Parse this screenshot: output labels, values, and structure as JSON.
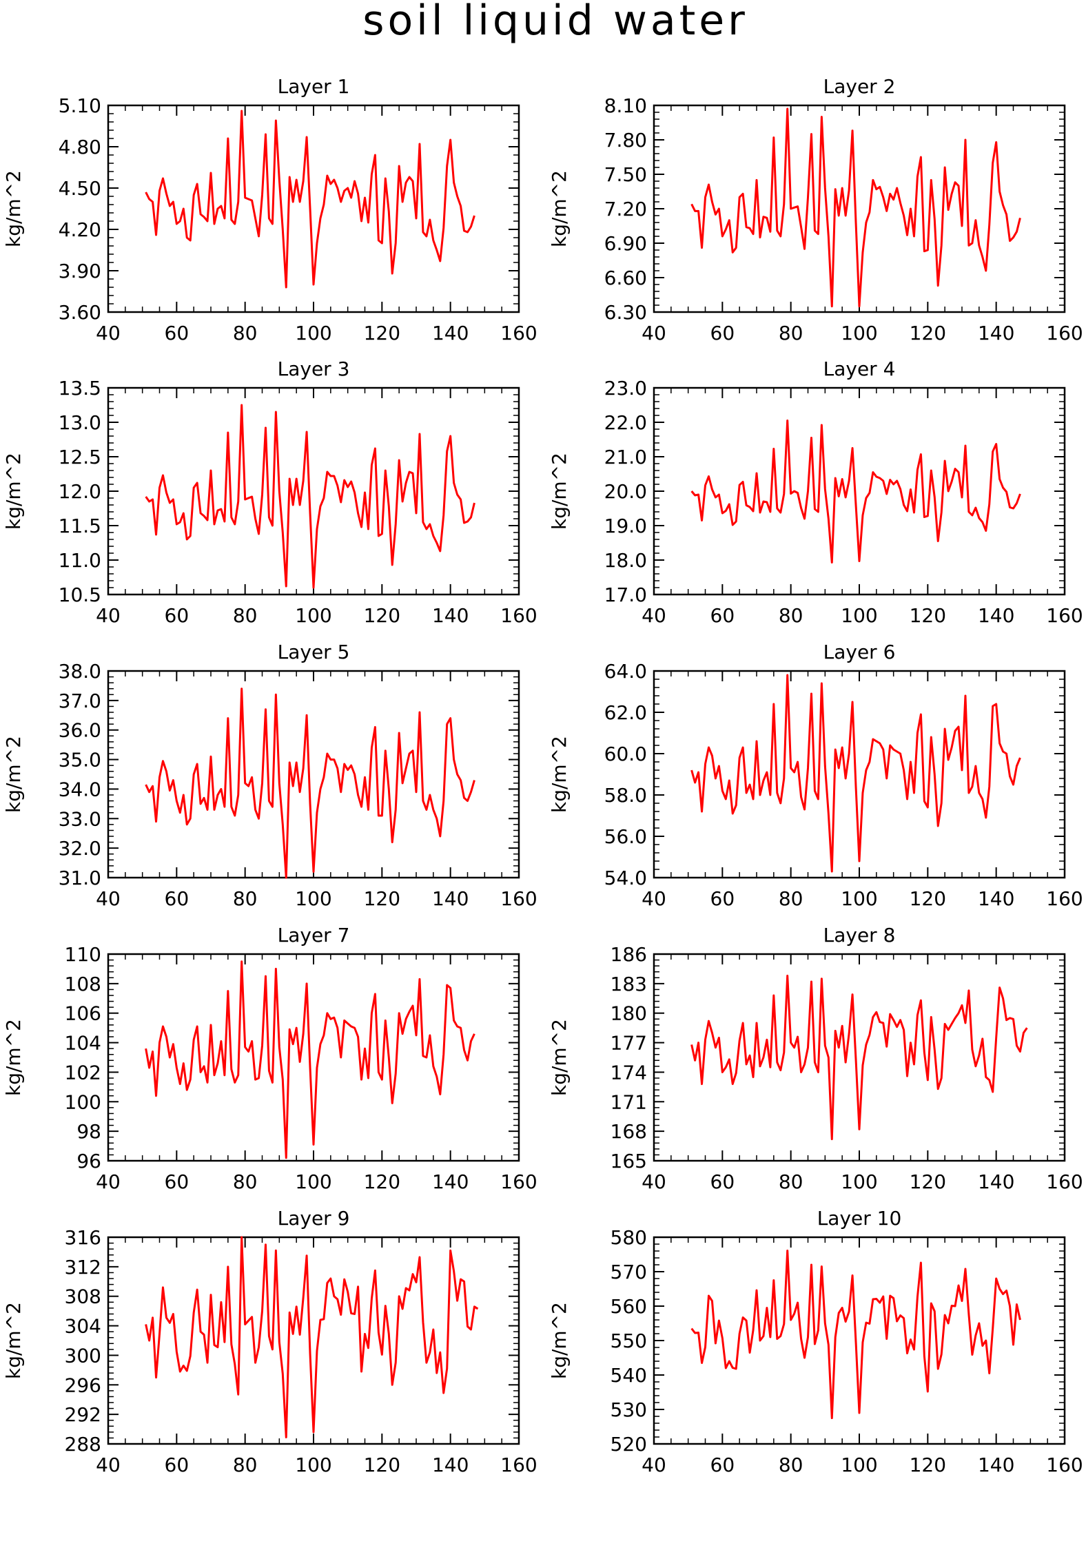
{
  "title": "soil liquid water",
  "style": {
    "line_color": "#ff0000",
    "axis_color": "#000000"
  },
  "chart_data": [
    {
      "type": "line",
      "title": "Layer 1",
      "ylabel": "kg/m^2",
      "xlim": [
        40,
        160
      ],
      "xticks": [
        40,
        60,
        80,
        100,
        120,
        140,
        160
      ],
      "ylim": [
        3.6,
        5.1
      ],
      "yticks": [
        "3.60",
        "3.90",
        "4.20",
        "4.50",
        "4.80",
        "5.10"
      ],
      "x_start": 51,
      "values": [
        4.47,
        4.42,
        4.4,
        4.16,
        4.48,
        4.57,
        4.46,
        4.37,
        4.4,
        4.24,
        4.26,
        4.35,
        4.14,
        4.12,
        4.45,
        4.53,
        4.31,
        4.29,
        4.26,
        4.61,
        4.24,
        4.35,
        4.37,
        4.28,
        4.86,
        4.27,
        4.24,
        4.4,
        5.06,
        4.43,
        4.42,
        4.41,
        4.28,
        4.15,
        4.45,
        4.89,
        4.28,
        4.24,
        4.99,
        4.56,
        4.2,
        3.78,
        4.58,
        4.4,
        4.56,
        4.4,
        4.55,
        4.87,
        4.35,
        3.8,
        4.1,
        4.28,
        4.38,
        4.59,
        4.53,
        4.56,
        4.5,
        4.4,
        4.48,
        4.5,
        4.43,
        4.55,
        4.46,
        4.26,
        4.43,
        4.25,
        4.6,
        4.74,
        4.12,
        4.1,
        4.57,
        4.33,
        3.88,
        4.1,
        4.66,
        4.4,
        4.54,
        4.58,
        4.55,
        4.28,
        4.82,
        4.18,
        4.15,
        4.27,
        4.12,
        4.05,
        3.97,
        4.21,
        4.66,
        4.85,
        4.54,
        4.44,
        4.37,
        4.19,
        4.18,
        4.22,
        4.3
      ]
    },
    {
      "type": "line",
      "title": "Layer 2",
      "ylabel": "kg/m^2",
      "xlim": [
        40,
        160
      ],
      "xticks": [
        40,
        60,
        80,
        100,
        120,
        140,
        160
      ],
      "ylim": [
        6.3,
        8.1
      ],
      "yticks": [
        "6.30",
        "6.60",
        "6.90",
        "7.20",
        "7.50",
        "7.80",
        "8.10"
      ],
      "x_start": 51,
      "values": [
        7.24,
        7.18,
        7.18,
        6.86,
        7.3,
        7.41,
        7.26,
        7.15,
        7.2,
        6.96,
        7.02,
        7.1,
        6.82,
        6.86,
        7.3,
        7.33,
        7.04,
        7.03,
        6.98,
        7.45,
        6.95,
        7.13,
        7.12,
        7.0,
        7.82,
        7.01,
        6.96,
        7.24,
        8.07,
        7.2,
        7.21,
        7.22,
        7.04,
        6.85,
        7.3,
        7.85,
        7.01,
        6.98,
        8.0,
        7.38,
        6.96,
        6.35,
        7.37,
        7.14,
        7.38,
        7.14,
        7.36,
        7.88,
        7.08,
        6.35,
        6.82,
        7.08,
        7.17,
        7.45,
        7.37,
        7.39,
        7.3,
        7.18,
        7.33,
        7.28,
        7.38,
        7.25,
        7.14,
        6.97,
        7.2,
        6.96,
        7.48,
        7.65,
        6.83,
        6.84,
        7.45,
        7.11,
        6.53,
        6.88,
        7.56,
        7.19,
        7.33,
        7.43,
        7.4,
        7.05,
        7.8,
        6.88,
        6.9,
        7.1,
        6.88,
        6.78,
        6.66,
        7.06,
        7.6,
        7.78,
        7.35,
        7.23,
        7.15,
        6.92,
        6.95,
        7.0,
        7.12
      ]
    },
    {
      "type": "line",
      "title": "Layer 3",
      "ylabel": "kg/m^2",
      "xlim": [
        40,
        160
      ],
      "xticks": [
        40,
        60,
        80,
        100,
        120,
        140,
        160
      ],
      "ylim": [
        10.5,
        13.5
      ],
      "yticks": [
        "10.5",
        "11.0",
        "11.5",
        "12.0",
        "12.5",
        "13.0",
        "13.5"
      ],
      "x_start": 51,
      "values": [
        11.92,
        11.85,
        11.88,
        11.37,
        12.05,
        12.23,
        11.98,
        11.83,
        11.88,
        11.52,
        11.55,
        11.68,
        11.3,
        11.35,
        12.05,
        12.12,
        11.68,
        11.64,
        11.58,
        12.3,
        11.52,
        11.72,
        11.74,
        11.56,
        12.85,
        11.62,
        11.52,
        11.85,
        13.25,
        11.88,
        11.9,
        11.92,
        11.6,
        11.38,
        11.95,
        12.92,
        11.62,
        11.5,
        13.15,
        12.0,
        11.4,
        10.62,
        12.18,
        11.8,
        12.18,
        11.8,
        12.15,
        12.86,
        11.68,
        10.6,
        11.45,
        11.78,
        11.9,
        12.28,
        12.22,
        12.22,
        12.08,
        11.84,
        12.16,
        12.06,
        12.14,
        11.98,
        11.68,
        11.48,
        11.98,
        11.45,
        12.38,
        12.62,
        11.35,
        11.38,
        12.3,
        11.78,
        10.93,
        11.52,
        12.45,
        11.85,
        12.12,
        12.28,
        12.26,
        11.68,
        12.83,
        11.55,
        11.45,
        11.52,
        11.35,
        11.25,
        11.13,
        11.65,
        12.58,
        12.8,
        12.12,
        11.95,
        11.88,
        11.54,
        11.56,
        11.62,
        11.83
      ]
    },
    {
      "type": "line",
      "title": "Layer 4",
      "ylabel": "kg/m^2",
      "xlim": [
        40,
        160
      ],
      "xticks": [
        40,
        60,
        80,
        100,
        120,
        140,
        160
      ],
      "ylim": [
        17.0,
        23.0
      ],
      "yticks": [
        "17.0",
        "18.0",
        "19.0",
        "20.0",
        "21.0",
        "22.0",
        "23.0"
      ],
      "x_start": 51,
      "values": [
        20.0,
        19.88,
        19.9,
        19.15,
        20.17,
        20.43,
        20.05,
        19.82,
        19.9,
        19.36,
        19.43,
        19.62,
        19.02,
        19.12,
        20.18,
        20.27,
        19.59,
        19.54,
        19.42,
        20.52,
        19.38,
        19.7,
        19.68,
        19.4,
        21.23,
        19.5,
        19.38,
        19.92,
        22.05,
        19.93,
        20.0,
        19.95,
        19.51,
        19.2,
        20.0,
        21.55,
        19.48,
        19.4,
        21.92,
        20.06,
        19.2,
        17.93,
        20.38,
        19.85,
        20.35,
        19.82,
        20.3,
        21.25,
        19.6,
        17.97,
        19.3,
        19.8,
        19.95,
        20.55,
        20.42,
        20.38,
        20.3,
        19.92,
        20.33,
        20.2,
        20.3,
        20.06,
        19.6,
        19.42,
        20.05,
        19.38,
        20.62,
        21.07,
        19.25,
        19.28,
        20.6,
        19.83,
        18.55,
        19.38,
        20.88,
        20.0,
        20.28,
        20.65,
        20.55,
        19.82,
        21.32,
        19.4,
        19.3,
        19.52,
        19.22,
        19.1,
        18.85,
        19.62,
        21.15,
        21.37,
        20.35,
        20.1,
        19.98,
        19.53,
        19.5,
        19.65,
        19.92
      ]
    },
    {
      "type": "line",
      "title": "Layer 5",
      "ylabel": "kg/m^2",
      "xlim": [
        40,
        160
      ],
      "xticks": [
        40,
        60,
        80,
        100,
        120,
        140,
        160
      ],
      "ylim": [
        31.0,
        38.0
      ],
      "yticks": [
        "31.0",
        "32.0",
        "33.0",
        "34.0",
        "35.0",
        "36.0",
        "37.0",
        "38.0"
      ],
      "x_start": 51,
      "values": [
        34.15,
        33.9,
        34.1,
        32.9,
        34.4,
        34.95,
        34.6,
        33.95,
        34.3,
        33.6,
        33.2,
        33.8,
        32.8,
        33.0,
        34.5,
        34.85,
        33.5,
        33.7,
        33.3,
        35.1,
        33.3,
        33.8,
        34.0,
        33.4,
        36.4,
        33.4,
        33.1,
        33.8,
        37.4,
        34.2,
        34.1,
        34.4,
        33.3,
        33.0,
        34.2,
        36.7,
        33.6,
        33.4,
        37.2,
        34.2,
        32.8,
        31.0,
        34.9,
        34.1,
        34.9,
        33.9,
        34.7,
        36.5,
        33.5,
        31.2,
        33.2,
        34.0,
        34.4,
        35.2,
        35.0,
        35.0,
        34.7,
        33.9,
        34.85,
        34.65,
        34.8,
        34.5,
        33.8,
        33.4,
        34.4,
        33.3,
        35.4,
        36.1,
        33.1,
        33.1,
        35.3,
        34.0,
        32.2,
        33.3,
        35.9,
        34.2,
        34.7,
        35.2,
        35.3,
        33.9,
        36.6,
        33.6,
        33.3,
        33.8,
        33.3,
        33.0,
        32.4,
        33.6,
        36.2,
        36.4,
        35.0,
        34.5,
        34.3,
        33.7,
        33.6,
        33.9,
        34.3
      ]
    },
    {
      "type": "line",
      "title": "Layer 6",
      "ylabel": "kg/m^2",
      "xlim": [
        40,
        160
      ],
      "xticks": [
        40,
        60,
        80,
        100,
        120,
        140,
        160
      ],
      "ylim": [
        54.0,
        64.0
      ],
      "yticks": [
        "54.0",
        "56.0",
        "58.0",
        "60.0",
        "62.0",
        "64.0"
      ],
      "x_start": 51,
      "values": [
        59.2,
        58.6,
        59.1,
        57.2,
        59.5,
        60.3,
        59.9,
        58.8,
        59.4,
        58.2,
        57.8,
        58.7,
        57.1,
        57.5,
        59.8,
        60.3,
        58.1,
        58.5,
        57.8,
        60.6,
        58.0,
        58.7,
        59.1,
        58.0,
        62.4,
        58.1,
        57.6,
        58.8,
        63.8,
        59.3,
        59.1,
        59.6,
        57.9,
        57.3,
        59.3,
        62.9,
        58.2,
        57.8,
        63.4,
        59.4,
        57.1,
        54.3,
        60.2,
        59.3,
        60.3,
        58.8,
        60.0,
        62.5,
        58.4,
        54.8,
        58.1,
        59.2,
        59.6,
        60.7,
        60.6,
        60.5,
        60.2,
        58.8,
        60.4,
        60.2,
        60.1,
        60.0,
        59.2,
        57.8,
        59.6,
        58.1,
        61.0,
        61.9,
        57.7,
        57.4,
        60.8,
        59.0,
        56.5,
        57.6,
        61.2,
        59.7,
        60.3,
        61.1,
        61.3,
        59.2,
        62.8,
        58.1,
        58.4,
        59.4,
        58.1,
        57.8,
        56.9,
        58.4,
        62.3,
        62.4,
        60.5,
        60.1,
        60.0,
        58.9,
        58.5,
        59.4,
        59.8
      ]
    },
    {
      "type": "line",
      "title": "Layer 7",
      "ylabel": "kg/m^2",
      "xlim": [
        40,
        160
      ],
      "xticks": [
        40,
        60,
        80,
        100,
        120,
        140,
        160
      ],
      "ylim": [
        96,
        110
      ],
      "yticks": [
        "96",
        "98",
        "100",
        "102",
        "104",
        "106",
        "108",
        "110"
      ],
      "x_start": 51,
      "values": [
        103.6,
        102.3,
        103.4,
        100.4,
        104.0,
        105.1,
        104.4,
        103.0,
        103.9,
        102.3,
        101.2,
        102.6,
        100.8,
        101.5,
        104.2,
        105.1,
        102.0,
        102.4,
        101.3,
        105.2,
        101.8,
        102.6,
        104.1,
        101.8,
        107.5,
        102.2,
        101.3,
        101.8,
        109.5,
        103.7,
        103.4,
        104.1,
        101.5,
        101.6,
        103.8,
        108.5,
        102.1,
        101.3,
        109.0,
        103.7,
        101.5,
        96.2,
        104.9,
        103.9,
        105.0,
        102.7,
        104.6,
        108.0,
        102.3,
        97.1,
        102.3,
        103.9,
        104.5,
        106.0,
        105.6,
        105.7,
        105.0,
        103.0,
        105.5,
        105.3,
        105.1,
        105.0,
        104.4,
        101.5,
        103.6,
        101.6,
        106.0,
        107.3,
        102.0,
        101.5,
        105.5,
        103.0,
        99.9,
        101.9,
        106.0,
        104.6,
        105.6,
        106.1,
        106.5,
        104.5,
        108.3,
        103.1,
        103.0,
        104.5,
        102.4,
        101.7,
        100.5,
        103.2,
        107.9,
        107.7,
        105.5,
        105.1,
        105.0,
        103.5,
        102.8,
        104.1,
        104.6
      ]
    },
    {
      "type": "line",
      "title": "Layer 8",
      "ylabel": "kg/m^2",
      "xlim": [
        40,
        160
      ],
      "xticks": [
        40,
        60,
        80,
        100,
        120,
        140,
        160
      ],
      "ylim": [
        165,
        186
      ],
      "yticks": [
        "165",
        "168",
        "171",
        "174",
        "177",
        "180",
        "183",
        "186"
      ],
      "x_start": 51,
      "values": [
        176.8,
        175.2,
        177.0,
        172.8,
        177.3,
        179.2,
        178.0,
        176.5,
        177.5,
        174.0,
        174.5,
        175.3,
        172.8,
        173.9,
        177.2,
        179.0,
        174.8,
        175.7,
        173.5,
        179.0,
        174.6,
        175.5,
        177.3,
        174.5,
        181.8,
        175.0,
        174.2,
        176.0,
        183.8,
        177.0,
        176.5,
        177.6,
        174.0,
        174.8,
        176.5,
        183.2,
        175.0,
        174.0,
        183.5,
        176.7,
        175.5,
        167.2,
        178.2,
        176.5,
        178.7,
        175.0,
        177.9,
        181.9,
        175.3,
        168.2,
        174.7,
        176.8,
        177.8,
        179.6,
        180.1,
        179.1,
        179.0,
        176.6,
        179.9,
        179.3,
        178.6,
        179.3,
        178.3,
        173.6,
        177.0,
        174.8,
        179.8,
        181.3,
        176.0,
        173.2,
        179.6,
        176.3,
        172.3,
        173.4,
        178.9,
        178.3,
        178.9,
        179.5,
        180.0,
        180.8,
        179.0,
        182.3,
        176.3,
        174.6,
        175.7,
        177.4,
        173.5,
        173.2,
        172.0,
        177.5,
        182.6,
        181.5,
        179.3,
        179.5,
        179.4,
        176.7,
        176.1,
        178.0,
        178.5
      ]
    },
    {
      "type": "line",
      "title": "Layer 9",
      "ylabel": "kg/m^2",
      "xlim": [
        40,
        160
      ],
      "xticks": [
        40,
        60,
        80,
        100,
        120,
        140,
        160
      ],
      "ylim": [
        288,
        316
      ],
      "yticks": [
        "288",
        "292",
        "296",
        "300",
        "304",
        "308",
        "312",
        "316"
      ],
      "x_start": 51,
      "values": [
        304.2,
        302.0,
        305.1,
        297.0,
        302.9,
        309.2,
        305.1,
        304.4,
        305.6,
        300.5,
        297.8,
        298.6,
        297.9,
        299.9,
        305.8,
        308.9,
        303.2,
        302.8,
        299.0,
        308.2,
        301.4,
        301.1,
        307.2,
        301.8,
        312.0,
        301.5,
        298.8,
        294.7,
        316.0,
        304.2,
        304.7,
        305.2,
        299.0,
        301.1,
        306.0,
        315.0,
        302.6,
        300.8,
        314.2,
        301.8,
        297.5,
        288.9,
        305.8,
        302.9,
        306.6,
        302.8,
        307.8,
        313.5,
        300.2,
        289.6,
        300.6,
        304.8,
        304.9,
        309.8,
        310.4,
        308.0,
        307.6,
        305.5,
        310.3,
        308.6,
        305.7,
        305.6,
        309.3,
        297.8,
        302.9,
        301.0,
        307.7,
        311.5,
        303.1,
        300.1,
        306.7,
        302.9,
        296.0,
        299.0,
        308.0,
        306.3,
        309.1,
        308.8,
        311.0,
        309.9,
        313.3,
        304.5,
        299.0,
        300.4,
        303.5,
        297.6,
        300.4,
        294.9,
        298.2,
        314.2,
        311.4,
        307.4,
        310.3,
        310.0,
        303.9,
        303.5,
        306.6,
        306.3
      ]
    },
    {
      "type": "line",
      "title": "Layer 10",
      "ylabel": "kg/m^2",
      "xlim": [
        40,
        160
      ],
      "xticks": [
        40,
        60,
        80,
        100,
        120,
        140,
        160
      ],
      "ylim": [
        520,
        580
      ],
      "yticks": [
        "520",
        "530",
        "540",
        "550",
        "560",
        "570",
        "580"
      ],
      "x_start": 51,
      "values": [
        553.5,
        552.2,
        552.3,
        543.5,
        548.1,
        563.0,
        561.5,
        549.2,
        555.8,
        550.7,
        542.0,
        544.0,
        542.1,
        541.8,
        552.0,
        556.7,
        555.8,
        546.5,
        553.0,
        564.6,
        550.0,
        551.3,
        559.5,
        551.0,
        567.5,
        550.5,
        551.3,
        554.8,
        576.1,
        556.0,
        557.8,
        561.0,
        550.5,
        545.0,
        551.0,
        572.0,
        549.0,
        553.0,
        571.5,
        555.0,
        548.8,
        527.5,
        551.0,
        558.0,
        559.5,
        555.5,
        558.4,
        568.9,
        549.6,
        529.0,
        549.5,
        555.2,
        554.9,
        562.0,
        562.1,
        561.0,
        562.8,
        550.5,
        563.0,
        562.3,
        555.6,
        557.3,
        556.5,
        546.3,
        550.3,
        547.4,
        562.7,
        572.6,
        545.5,
        535.2,
        560.8,
        558.5,
        541.8,
        546.0,
        557.4,
        555.0,
        560.1,
        560.0,
        566.0,
        561.5,
        570.8,
        557.6,
        545.9,
        551.5,
        555.0,
        548.5,
        550.0,
        540.5,
        553.5,
        568.0,
        565.0,
        563.5,
        564.5,
        560.0,
        548.8,
        560.5,
        556.0
      ]
    }
  ]
}
